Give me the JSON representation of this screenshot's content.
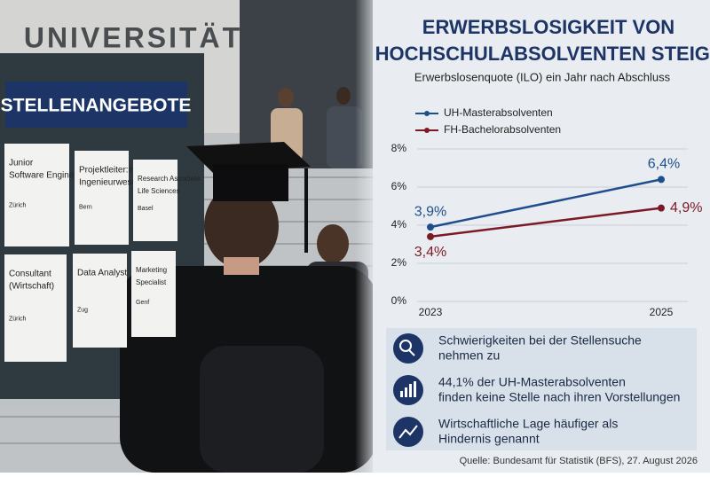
{
  "photo": {
    "building_sign": "UNIVERSITÄT",
    "board_title": "STELLENANGEBOTE",
    "cards": [
      [
        "Junior",
        "Software Engineer",
        "Zürich"
      ],
      [
        "Projektleiter:in",
        "Ingenieurwesen",
        "Bern"
      ],
      [
        "Research Associate",
        "Life Sciences",
        "Basel"
      ],
      [
        "Consultant",
        "(Wirtschaft)",
        "Zürich"
      ],
      [
        "Data Analyst",
        "Zug"
      ],
      [
        "Marketing",
        "Specialist",
        "Genf"
      ]
    ]
  },
  "chart_data": {
    "type": "line",
    "title": [
      "ERWERBSLOSIGKEIT VON",
      "HOCHSCHULABSOLVENTEN STEIGT"
    ],
    "subtitle": "Erwerbslosenquote (ILO) ein Jahr nach Abschluss",
    "categories": [
      "2023",
      "2025"
    ],
    "series": [
      {
        "name": "UH-Masterabsolventen",
        "color": "#1f4e8c",
        "values": [
          3.9,
          6.4
        ],
        "value_labels": [
          "3,9%",
          "6,4%"
        ]
      },
      {
        "name": "FH-Bachelorabsolventen",
        "color": "#7a1a24",
        "values": [
          3.4,
          4.9
        ],
        "value_labels": [
          "3,4%",
          "4,9%"
        ]
      }
    ],
    "ylim": [
      0,
      8
    ],
    "yticks": [
      {
        "value": 0,
        "label": "0%"
      },
      {
        "value": 2,
        "label": "2%"
      },
      {
        "value": 4,
        "label": "4%"
      },
      {
        "value": 6,
        "label": "6%"
      },
      {
        "value": 8,
        "label": "8%"
      }
    ],
    "legend": "top-left"
  },
  "notes": [
    [
      "Schwierigkeiten bei der Stellensuche",
      "nehmen zu"
    ],
    [
      "44,1% der UH-Masterabsolventen",
      "finden keine Stelle nach ihren Vorstellungen"
    ],
    [
      "Wirtschaftliche Lage häufiger als",
      "Hindernis genannt"
    ]
  ],
  "source": "Quelle: Bundesamt für Statistik (BFS), 27. August 2026"
}
